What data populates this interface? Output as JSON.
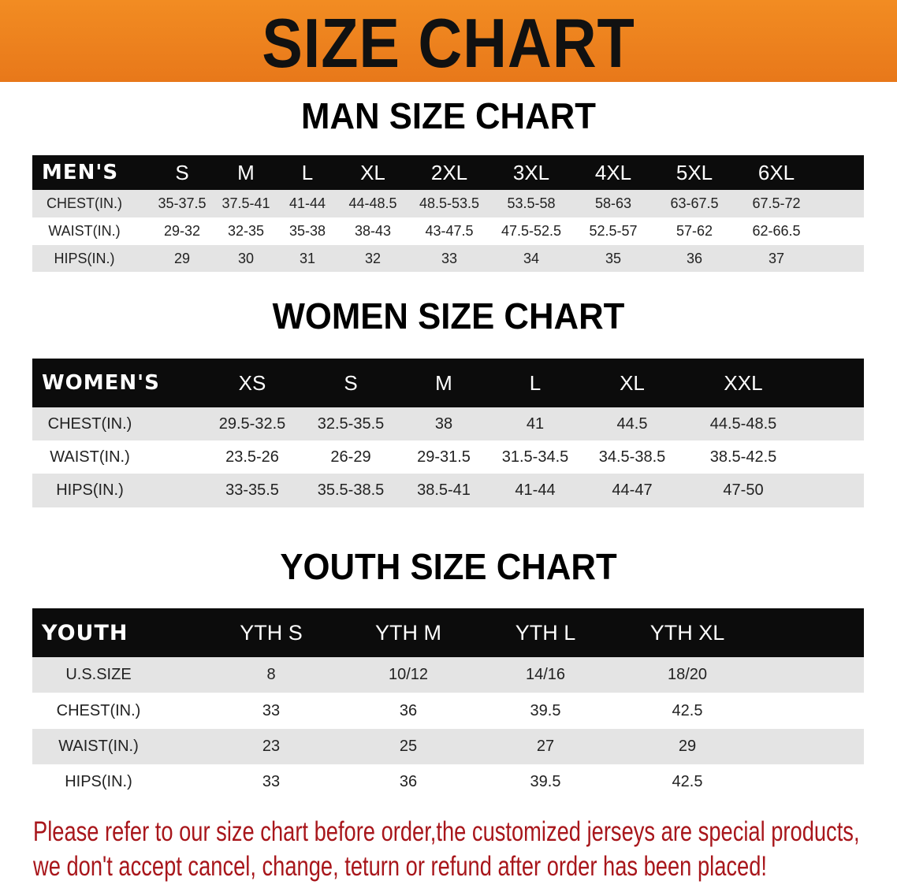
{
  "banner": {
    "title": "SIZE CHART",
    "color": "#ef8420"
  },
  "men": {
    "title": "MAN SIZE CHART",
    "header": [
      "MEN'S",
      "S",
      "M",
      "L",
      "XL",
      "2XL",
      "3XL",
      "4XL",
      "5XL",
      "6XL"
    ],
    "rows": [
      [
        "CHEST(IN.)",
        "35-37.5",
        "37.5-41",
        "41-44",
        "44-48.5",
        "48.5-53.5",
        "53.5-58",
        "58-63",
        "63-67.5",
        "67.5-72"
      ],
      [
        "WAIST(IN.)",
        "29-32",
        "32-35",
        "35-38",
        "38-43",
        "43-47.5",
        "47.5-52.5",
        "52.5-57",
        "57-62",
        "62-66.5"
      ],
      [
        "HIPS(IN.)",
        "29",
        "30",
        "31",
        "32",
        "33",
        "34",
        "35",
        "36",
        "37"
      ]
    ]
  },
  "women": {
    "title": "WOMEN SIZE CHART",
    "header": [
      "WOMEN'S",
      "XS",
      "S",
      "M",
      "L",
      "XL",
      "XXL"
    ],
    "rows": [
      [
        "CHEST(IN.)",
        "29.5-32.5",
        "32.5-35.5",
        "38",
        "41",
        "44.5",
        "44.5-48.5"
      ],
      [
        "WAIST(IN.)",
        "23.5-26",
        "26-29",
        "29-31.5",
        "31.5-34.5",
        "34.5-38.5",
        "38.5-42.5"
      ],
      [
        "HIPS(IN.)",
        "33-35.5",
        "35.5-38.5",
        "38.5-41",
        "41-44",
        "44-47",
        "47-50"
      ]
    ]
  },
  "youth": {
    "title": "YOUTH SIZE CHART",
    "header": [
      "YOUTH",
      "YTH S",
      "YTH M",
      "YTH L",
      "YTH XL"
    ],
    "rows": [
      [
        "U.S.SIZE",
        "8",
        "10/12",
        "14/16",
        "18/20"
      ],
      [
        "CHEST(IN.)",
        "33",
        "36",
        "39.5",
        "42.5"
      ],
      [
        "WAIST(IN.)",
        "23",
        "25",
        "27",
        "29"
      ],
      [
        "HIPS(IN.)",
        "33",
        "36",
        "39.5",
        "42.5"
      ]
    ]
  },
  "notice": {
    "line1": "Please refer to our size chart before order,the customized jerseys are special products,",
    "line2": "we don't accept cancel, change, teturn or refund after order has been placed!",
    "color": "#a8161b"
  }
}
